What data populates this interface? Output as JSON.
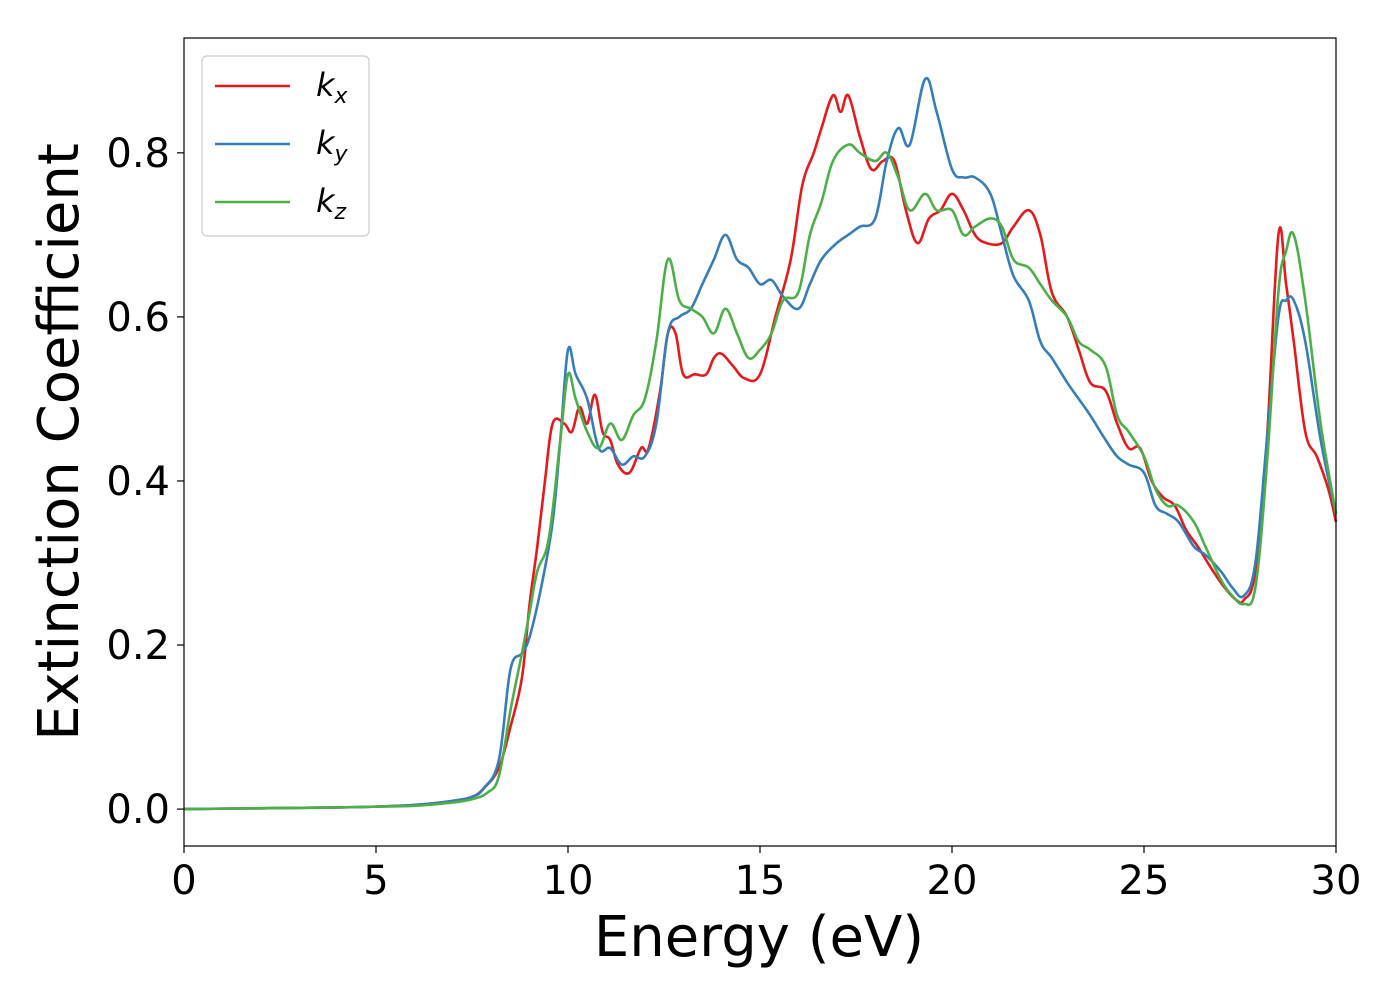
{
  "chart_data": {
    "type": "line",
    "title": "",
    "xlabel": "Energy (eV)",
    "ylabel": "Extinction Coefficient",
    "xlim": [
      0,
      30
    ],
    "ylim": [
      -0.045,
      0.94
    ],
    "xticks": [
      0,
      5,
      10,
      15,
      20,
      25,
      30
    ],
    "xtick_labels": [
      "0",
      "5",
      "10",
      "15",
      "20",
      "25",
      "30"
    ],
    "yticks": [
      0.0,
      0.2,
      0.4,
      0.6,
      0.8
    ],
    "ytick_labels": [
      "0.0",
      "0.2",
      "0.4",
      "0.6",
      "0.8"
    ],
    "grid": false,
    "legend_position": "top-left",
    "series": [
      {
        "name": "k_x",
        "label_main": "k",
        "label_sub": "x",
        "color": "#e41a1c",
        "points": [
          [
            0,
            0.0
          ],
          [
            2,
            0.001
          ],
          [
            4,
            0.002
          ],
          [
            5,
            0.003
          ],
          [
            6,
            0.005
          ],
          [
            7,
            0.01
          ],
          [
            7.5,
            0.015
          ],
          [
            7.8,
            0.025
          ],
          [
            8.2,
            0.05
          ],
          [
            8.5,
            0.1
          ],
          [
            8.8,
            0.16
          ],
          [
            9.0,
            0.25
          ],
          [
            9.2,
            0.32
          ],
          [
            9.4,
            0.4
          ],
          [
            9.6,
            0.47
          ],
          [
            9.9,
            0.47
          ],
          [
            10.1,
            0.46
          ],
          [
            10.3,
            0.49
          ],
          [
            10.5,
            0.47
          ],
          [
            10.7,
            0.505
          ],
          [
            10.9,
            0.46
          ],
          [
            11.1,
            0.45
          ],
          [
            11.3,
            0.42
          ],
          [
            11.6,
            0.41
          ],
          [
            11.9,
            0.44
          ],
          [
            12.1,
            0.44
          ],
          [
            12.4,
            0.51
          ],
          [
            12.6,
            0.58
          ],
          [
            12.8,
            0.58
          ],
          [
            13.0,
            0.53
          ],
          [
            13.3,
            0.53
          ],
          [
            13.6,
            0.53
          ],
          [
            13.8,
            0.55
          ],
          [
            14.0,
            0.555
          ],
          [
            14.3,
            0.54
          ],
          [
            14.6,
            0.525
          ],
          [
            15.0,
            0.53
          ],
          [
            15.4,
            0.6
          ],
          [
            15.8,
            0.67
          ],
          [
            16.1,
            0.76
          ],
          [
            16.4,
            0.8
          ],
          [
            16.6,
            0.83
          ],
          [
            16.9,
            0.87
          ],
          [
            17.1,
            0.85
          ],
          [
            17.3,
            0.87
          ],
          [
            17.6,
            0.82
          ],
          [
            17.9,
            0.78
          ],
          [
            18.2,
            0.79
          ],
          [
            18.5,
            0.79
          ],
          [
            18.8,
            0.73
          ],
          [
            19.1,
            0.69
          ],
          [
            19.4,
            0.72
          ],
          [
            19.7,
            0.73
          ],
          [
            20.0,
            0.75
          ],
          [
            20.3,
            0.73
          ],
          [
            20.6,
            0.7
          ],
          [
            20.9,
            0.69
          ],
          [
            21.3,
            0.69
          ],
          [
            21.6,
            0.71
          ],
          [
            22.0,
            0.73
          ],
          [
            22.3,
            0.7
          ],
          [
            22.6,
            0.63
          ],
          [
            23.0,
            0.6
          ],
          [
            23.3,
            0.56
          ],
          [
            23.6,
            0.52
          ],
          [
            24.0,
            0.51
          ],
          [
            24.3,
            0.47
          ],
          [
            24.6,
            0.44
          ],
          [
            24.9,
            0.44
          ],
          [
            25.2,
            0.4
          ],
          [
            25.5,
            0.38
          ],
          [
            25.8,
            0.37
          ],
          [
            26.1,
            0.34
          ],
          [
            26.4,
            0.32
          ],
          [
            26.8,
            0.29
          ],
          [
            27.1,
            0.27
          ],
          [
            27.4,
            0.255
          ],
          [
            27.6,
            0.255
          ],
          [
            27.9,
            0.29
          ],
          [
            28.2,
            0.45
          ],
          [
            28.5,
            0.7
          ],
          [
            28.7,
            0.64
          ],
          [
            28.9,
            0.57
          ],
          [
            29.2,
            0.46
          ],
          [
            29.5,
            0.43
          ],
          [
            29.8,
            0.39
          ],
          [
            30.0,
            0.35
          ]
        ]
      },
      {
        "name": "k_y",
        "label_main": "k",
        "label_sub": "y",
        "color": "#377eb8",
        "points": [
          [
            0,
            0.0
          ],
          [
            2,
            0.001
          ],
          [
            4,
            0.002
          ],
          [
            5,
            0.003
          ],
          [
            6,
            0.005
          ],
          [
            7,
            0.01
          ],
          [
            7.5,
            0.015
          ],
          [
            7.8,
            0.025
          ],
          [
            8.2,
            0.06
          ],
          [
            8.5,
            0.17
          ],
          [
            8.8,
            0.19
          ],
          [
            9.0,
            0.21
          ],
          [
            9.3,
            0.27
          ],
          [
            9.6,
            0.35
          ],
          [
            9.8,
            0.45
          ],
          [
            10.0,
            0.56
          ],
          [
            10.2,
            0.53
          ],
          [
            10.5,
            0.5
          ],
          [
            10.8,
            0.44
          ],
          [
            11.1,
            0.44
          ],
          [
            11.4,
            0.42
          ],
          [
            11.7,
            0.43
          ],
          [
            12.0,
            0.43
          ],
          [
            12.3,
            0.47
          ],
          [
            12.6,
            0.58
          ],
          [
            12.9,
            0.6
          ],
          [
            13.2,
            0.61
          ],
          [
            13.5,
            0.64
          ],
          [
            13.8,
            0.67
          ],
          [
            14.1,
            0.7
          ],
          [
            14.4,
            0.67
          ],
          [
            14.7,
            0.66
          ],
          [
            15.0,
            0.64
          ],
          [
            15.3,
            0.645
          ],
          [
            15.6,
            0.625
          ],
          [
            16.0,
            0.61
          ],
          [
            16.3,
            0.64
          ],
          [
            16.6,
            0.67
          ],
          [
            17.0,
            0.69
          ],
          [
            17.3,
            0.7
          ],
          [
            17.6,
            0.71
          ],
          [
            18.0,
            0.72
          ],
          [
            18.3,
            0.79
          ],
          [
            18.6,
            0.83
          ],
          [
            18.9,
            0.81
          ],
          [
            19.3,
            0.89
          ],
          [
            19.6,
            0.85
          ],
          [
            20.0,
            0.78
          ],
          [
            20.3,
            0.77
          ],
          [
            20.6,
            0.77
          ],
          [
            21.0,
            0.75
          ],
          [
            21.3,
            0.7
          ],
          [
            21.6,
            0.65
          ],
          [
            22.0,
            0.62
          ],
          [
            22.3,
            0.57
          ],
          [
            22.6,
            0.55
          ],
          [
            23.0,
            0.52
          ],
          [
            23.3,
            0.5
          ],
          [
            23.6,
            0.48
          ],
          [
            24.0,
            0.45
          ],
          [
            24.3,
            0.43
          ],
          [
            24.6,
            0.42
          ],
          [
            25.0,
            0.41
          ],
          [
            25.3,
            0.37
          ],
          [
            25.6,
            0.36
          ],
          [
            25.9,
            0.35
          ],
          [
            26.3,
            0.32
          ],
          [
            26.6,
            0.31
          ],
          [
            27.0,
            0.29
          ],
          [
            27.3,
            0.27
          ],
          [
            27.6,
            0.26
          ],
          [
            27.9,
            0.3
          ],
          [
            28.2,
            0.45
          ],
          [
            28.5,
            0.6
          ],
          [
            28.7,
            0.62
          ],
          [
            28.9,
            0.62
          ],
          [
            29.2,
            0.57
          ],
          [
            29.6,
            0.45
          ],
          [
            30.0,
            0.36
          ]
        ]
      },
      {
        "name": "k_z",
        "label_main": "k",
        "label_sub": "z",
        "color": "#4daf4a",
        "points": [
          [
            0,
            0.0
          ],
          [
            2,
            0.001
          ],
          [
            4,
            0.002
          ],
          [
            5,
            0.003
          ],
          [
            6,
            0.004
          ],
          [
            7,
            0.008
          ],
          [
            7.5,
            0.012
          ],
          [
            7.9,
            0.02
          ],
          [
            8.2,
            0.04
          ],
          [
            8.5,
            0.12
          ],
          [
            8.8,
            0.19
          ],
          [
            9.0,
            0.24
          ],
          [
            9.2,
            0.29
          ],
          [
            9.5,
            0.33
          ],
          [
            9.8,
            0.45
          ],
          [
            10.0,
            0.53
          ],
          [
            10.2,
            0.5
          ],
          [
            10.5,
            0.46
          ],
          [
            10.8,
            0.44
          ],
          [
            11.1,
            0.47
          ],
          [
            11.4,
            0.45
          ],
          [
            11.7,
            0.48
          ],
          [
            12.0,
            0.5
          ],
          [
            12.3,
            0.57
          ],
          [
            12.6,
            0.67
          ],
          [
            12.9,
            0.62
          ],
          [
            13.2,
            0.61
          ],
          [
            13.5,
            0.6
          ],
          [
            13.8,
            0.58
          ],
          [
            14.1,
            0.61
          ],
          [
            14.4,
            0.58
          ],
          [
            14.7,
            0.55
          ],
          [
            15.0,
            0.56
          ],
          [
            15.3,
            0.58
          ],
          [
            15.6,
            0.62
          ],
          [
            16.0,
            0.63
          ],
          [
            16.3,
            0.7
          ],
          [
            16.6,
            0.74
          ],
          [
            16.9,
            0.79
          ],
          [
            17.3,
            0.81
          ],
          [
            17.6,
            0.8
          ],
          [
            18.0,
            0.79
          ],
          [
            18.3,
            0.8
          ],
          [
            18.6,
            0.77
          ],
          [
            18.9,
            0.73
          ],
          [
            19.3,
            0.75
          ],
          [
            19.6,
            0.73
          ],
          [
            20.0,
            0.73
          ],
          [
            20.3,
            0.7
          ],
          [
            20.6,
            0.71
          ],
          [
            21.0,
            0.72
          ],
          [
            21.3,
            0.71
          ],
          [
            21.6,
            0.67
          ],
          [
            22.0,
            0.66
          ],
          [
            22.3,
            0.64
          ],
          [
            22.6,
            0.62
          ],
          [
            23.0,
            0.6
          ],
          [
            23.3,
            0.57
          ],
          [
            23.6,
            0.56
          ],
          [
            24.0,
            0.54
          ],
          [
            24.3,
            0.48
          ],
          [
            24.6,
            0.46
          ],
          [
            25.0,
            0.43
          ],
          [
            25.3,
            0.39
          ],
          [
            25.6,
            0.37
          ],
          [
            25.9,
            0.37
          ],
          [
            26.3,
            0.35
          ],
          [
            26.6,
            0.32
          ],
          [
            27.0,
            0.28
          ],
          [
            27.3,
            0.26
          ],
          [
            27.6,
            0.25
          ],
          [
            27.9,
            0.27
          ],
          [
            28.2,
            0.42
          ],
          [
            28.5,
            0.63
          ],
          [
            28.7,
            0.68
          ],
          [
            28.9,
            0.7
          ],
          [
            29.2,
            0.62
          ],
          [
            29.6,
            0.47
          ],
          [
            30.0,
            0.36
          ]
        ]
      }
    ]
  }
}
